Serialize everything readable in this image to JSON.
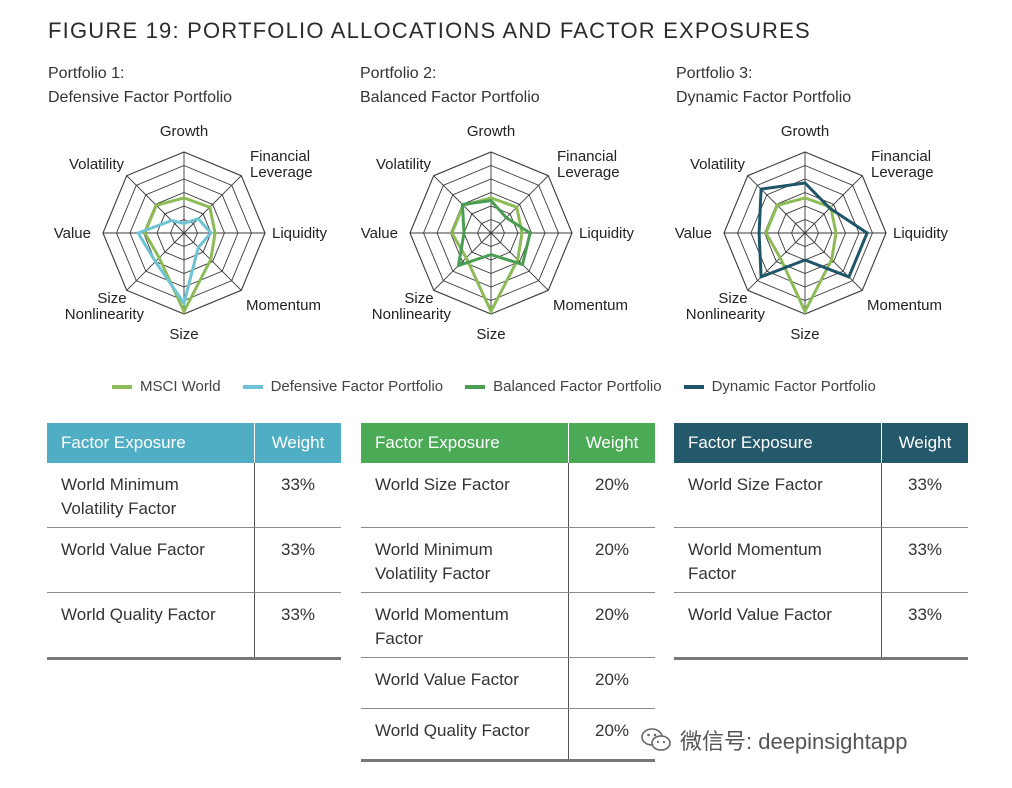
{
  "figure_title": "FIGURE 19: PORTFOLIO ALLOCATIONS AND FACTOR EXPOSURES",
  "axes": [
    "Growth",
    "Financial Leverage",
    "Liquidity",
    "Momentum",
    "Size",
    "Size Nonlinearity",
    "Value",
    "Volatility"
  ],
  "colors": {
    "msci": "#8dbb56",
    "defensive": "#6ec3d4",
    "balanced": "#4a9e52",
    "dynamic": "#1f5568",
    "grid": "#3a3a3a"
  },
  "legend": [
    {
      "label": "MSCI World",
      "color": "#8dbb56"
    },
    {
      "label": "Defensive Factor Portfolio",
      "color": "#6ec3d4"
    },
    {
      "label": "Balanced Factor Portfolio",
      "color": "#4a9e52"
    },
    {
      "label": "Dynamic Factor Portfolio",
      "color": "#1f5568"
    }
  ],
  "chart_data": [
    {
      "type": "radar",
      "title_line1": "Portfolio 1:",
      "title_line2": "Defensive Factor Portfolio",
      "rings": 6,
      "categories": [
        "Growth",
        "Financial Leverage",
        "Liquidity",
        "Momentum",
        "Size",
        "Size Nonlinearity",
        "Value",
        "Volatility"
      ],
      "series": [
        {
          "name": "MSCI World",
          "values": [
            2.6,
            2.7,
            2.3,
            2.8,
            5.8,
            2.6,
            2.9,
            2.9
          ]
        },
        {
          "name": "Defensive Factor Portfolio",
          "values": [
            0.7,
            1.5,
            2.0,
            1.5,
            5.2,
            3.0,
            3.4,
            1.3
          ]
        }
      ],
      "table": {
        "header_color": "#4faec4",
        "col1": "Factor Exposure",
        "col2": "Weight",
        "rows": [
          {
            "factor": [
              "World Minimum",
              "Volatility Factor"
            ],
            "weight": "33%"
          },
          {
            "factor": [
              "World Value Factor"
            ],
            "weight": "33%"
          },
          {
            "factor": [
              "World Quality Factor"
            ],
            "weight": "33%"
          }
        ]
      }
    },
    {
      "type": "radar",
      "title_line1": "Portfolio 2:",
      "title_line2": "Balanced Factor Portfolio",
      "rings": 6,
      "categories": [
        "Growth",
        "Financial Leverage",
        "Liquidity",
        "Momentum",
        "Size",
        "Size Nonlinearity",
        "Value",
        "Volatility"
      ],
      "series": [
        {
          "name": "MSCI World",
          "values": [
            2.6,
            2.7,
            2.3,
            2.8,
            5.8,
            2.6,
            2.9,
            2.9
          ]
        },
        {
          "name": "Balanced Factor Portfolio",
          "values": [
            2.4,
            1.6,
            2.9,
            3.3,
            1.6,
            3.4,
            2.0,
            3.0
          ]
        }
      ],
      "table": {
        "header_color": "#4aaa56",
        "col1": "Factor Exposure",
        "col2": "Weight",
        "rows": [
          {
            "factor": [
              "World Size Factor"
            ],
            "weight": "20%"
          },
          {
            "factor": [
              "World Minimum",
              "Volatility Factor"
            ],
            "weight": "20%"
          },
          {
            "factor": [
              "World Momentum",
              "Factor"
            ],
            "weight": "20%"
          },
          {
            "factor": [
              "World Value Factor"
            ],
            "weight": "20%"
          },
          {
            "factor": [
              "World Quality Factor"
            ],
            "weight": "20%"
          }
        ]
      }
    },
    {
      "type": "radar",
      "title_line1": "Portfolio 3:",
      "title_line2": "Dynamic Factor Portfolio",
      "rings": 6,
      "categories": [
        "Growth",
        "Financial Leverage",
        "Liquidity",
        "Momentum",
        "Size",
        "Size Nonlinearity",
        "Value",
        "Volatility"
      ],
      "series": [
        {
          "name": "MSCI World",
          "values": [
            2.6,
            2.7,
            2.3,
            2.8,
            5.8,
            2.6,
            2.9,
            2.9
          ]
        },
        {
          "name": "Dynamic Factor Portfolio",
          "values": [
            3.7,
            2.6,
            4.6,
            4.6,
            2.0,
            4.6,
            3.4,
            4.6
          ]
        }
      ],
      "table": {
        "header_color": "#23596b",
        "col1": "Factor Exposure",
        "col2": "Weight",
        "rows": [
          {
            "factor": [
              "World Size Factor"
            ],
            "weight": "33%"
          },
          {
            "factor": [
              "World Momentum",
              "Factor"
            ],
            "weight": "33%"
          },
          {
            "factor": [
              "World Value Factor"
            ],
            "weight": "33%"
          }
        ]
      }
    }
  ],
  "watermark": "微信号: deepinsightapp"
}
